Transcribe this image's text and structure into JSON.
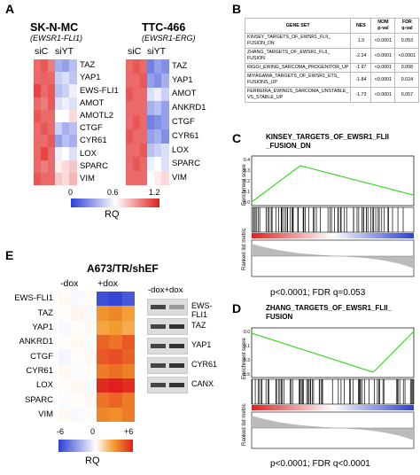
{
  "panels": {
    "A": {
      "letter": "A",
      "cells": [
        {
          "title": "SK-N-MC",
          "subtitle": "(EWSR1-FLI1)",
          "cols": [
            "siC",
            "siYT"
          ],
          "genes": [
            "TAZ",
            "YAP1",
            "EWS-FLI1",
            "AMOT",
            "AMOTL2",
            "CTGF",
            "CYR61",
            "LOX",
            "SPARC",
            "VIM"
          ]
        },
        {
          "title": "TTC-466",
          "subtitle": "(EWSR1-ERG)",
          "cols": [
            "siC",
            "siYT"
          ],
          "genes": [
            "TAZ",
            "YAP1",
            "AMOT",
            "ANKRD1",
            "CTGF",
            "CYR61",
            "LOX",
            "SPARC",
            "VIM"
          ]
        }
      ],
      "scale": {
        "ticks": [
          "0",
          "0.6",
          "1.2"
        ],
        "label": "RQ"
      }
    },
    "B": {
      "letter": "B",
      "headers": [
        "GENE SET",
        "NES",
        "NOM\np-val",
        "FDR\nq-val"
      ],
      "rows": [
        [
          "KINSEY_TARGETS_OF_EWSR1_FLII_\nFUSION_DN",
          "1.9",
          "<0.0001",
          "0.053"
        ],
        [
          "ZHANG_TARGETS_OF_EWSR1_FLII_\nFUSION",
          "-2.24",
          "<0.0001",
          "<0.0001"
        ],
        [
          "RIGGI_EWING_SARCOMA_PROGENITOR_UP",
          "-1.97",
          "<0.0001",
          "0.008"
        ],
        [
          "MIYAGAWA_TARGETS_OF_EWSR1_ETS_\nFUSIONS_UP",
          "-1.84",
          "<0.0001",
          "0.024"
        ],
        [
          "FERREIRA_EWINGS_SARCOMA_UNSTABLE_\nVS_STABLE_UP",
          "-1.73",
          "<0.0001",
          "0.057"
        ]
      ]
    },
    "C": {
      "letter": "C",
      "title": "KINSEY_TARGETS_OF_EWSR1_FLII\n_FUSION_DN",
      "ylabel_top": "Enrichment score",
      "ylabel_bottom": "Ranked list metric",
      "yticks": [
        "0.4",
        "0.3",
        "0.2",
        "0.1",
        "0.0"
      ],
      "stat": "p<0.0001; FDR q=0.053"
    },
    "D": {
      "letter": "D",
      "title": "ZHANG_TARGETS_OF_EWSR1_FLII_\nFUSION",
      "ylabel_top": "Enrichment score",
      "ylabel_bottom": "Ranked list metric",
      "yticks": [
        "0.0",
        "-0.1",
        "-0.3",
        "-0.5"
      ],
      "stat": "p<0.0001; FDR q<0.0001"
    },
    "E": {
      "letter": "E",
      "title": "A673/TR/shEF",
      "cols": [
        "-dox",
        "+dox"
      ],
      "genes": [
        "EWS-FLI1",
        "TAZ",
        "YAP1",
        "ANKRD1",
        "CTGF",
        "CYR61",
        "LOX",
        "SPARC",
        "VIM"
      ],
      "scale": {
        "ticks": [
          "-6",
          "0",
          "+6"
        ],
        "label": "RQ"
      },
      "blot_header": "-dox+dox",
      "blots": [
        "EWS-FLI1",
        "TAZ",
        "YAP1",
        "CYR61",
        "CANX"
      ]
    }
  },
  "colors": {
    "blue": "#2b3fd6",
    "red": "#e0201f",
    "orange": "#f29a2a",
    "gsea_line": "#3fd62b"
  },
  "heatmap_values": {
    "A1": [
      [
        [
          1.0,
          1.05,
          0.95
        ],
        [
          0.35,
          0.3,
          0.4
        ]
      ],
      [
        [
          1.0,
          1.02,
          1.0
        ],
        [
          0.45,
          0.5,
          0.42
        ]
      ],
      [
        [
          1.1,
          1.0,
          1.05
        ],
        [
          0.4,
          0.45,
          0.55
        ]
      ],
      [
        [
          1.0,
          0.95,
          1.05
        ],
        [
          0.5,
          0.55,
          0.5
        ]
      ],
      [
        [
          1.05,
          1.0,
          1.0
        ],
        [
          0.6,
          0.6,
          0.7
        ]
      ],
      [
        [
          1.0,
          1.05,
          1.0
        ],
        [
          0.45,
          0.35,
          0.4
        ]
      ],
      [
        [
          1.0,
          1.0,
          1.05
        ],
        [
          0.3,
          0.4,
          0.35
        ]
      ],
      [
        [
          1.0,
          1.1,
          1.0
        ],
        [
          0.55,
          0.6,
          0.5
        ]
      ],
      [
        [
          1.0,
          0.95,
          1.0
        ],
        [
          0.65,
          0.7,
          0.75
        ]
      ],
      [
        [
          1.05,
          1.0,
          1.0
        ],
        [
          0.75,
          0.7,
          0.8
        ]
      ]
    ],
    "A2": [
      [
        [
          1.0,
          1.05,
          1.0
        ],
        [
          0.2,
          0.3,
          0.25
        ]
      ],
      [
        [
          1.0,
          1.0,
          1.05
        ],
        [
          0.3,
          0.25,
          0.35
        ]
      ],
      [
        [
          1.05,
          1.0,
          1.0
        ],
        [
          0.5,
          0.55,
          0.45
        ]
      ],
      [
        [
          1.0,
          1.0,
          1.0
        ],
        [
          0.35,
          0.4,
          0.3
        ]
      ],
      [
        [
          1.0,
          1.05,
          1.0
        ],
        [
          0.2,
          0.25,
          0.3
        ]
      ],
      [
        [
          1.05,
          1.0,
          1.0
        ],
        [
          0.3,
          0.35,
          0.25
        ]
      ],
      [
        [
          1.0,
          1.0,
          1.05
        ],
        [
          0.4,
          0.45,
          0.5
        ]
      ],
      [
        [
          1.0,
          1.05,
          1.0
        ],
        [
          0.55,
          0.6,
          0.5
        ]
      ],
      [
        [
          1.0,
          1.0,
          1.0
        ],
        [
          0.6,
          0.65,
          0.7
        ]
      ]
    ],
    "E": [
      [
        [
          0.2,
          -0.2,
          0.1
        ],
        [
          -5.5,
          -5.8,
          -5.2
        ]
      ],
      [
        [
          0.1,
          0.3,
          -0.2
        ],
        [
          3.5,
          3.8,
          3.2
        ]
      ],
      [
        [
          -0.2,
          0.1,
          0.2
        ],
        [
          3.0,
          3.3,
          2.8
        ]
      ],
      [
        [
          0.1,
          0.2,
          -0.1
        ],
        [
          4.5,
          4.2,
          4.8
        ]
      ],
      [
        [
          -0.3,
          0.1,
          0.2
        ],
        [
          4.8,
          5.0,
          4.6
        ]
      ],
      [
        [
          0.2,
          -0.1,
          0.1
        ],
        [
          4.0,
          4.3,
          3.9
        ]
      ],
      [
        [
          0.1,
          0.2,
          -0.2
        ],
        [
          5.8,
          6.0,
          5.7
        ]
      ],
      [
        [
          -0.1,
          0.1,
          0.2
        ],
        [
          4.2,
          4.5,
          4.0
        ]
      ],
      [
        [
          0.2,
          -0.2,
          0.1
        ],
        [
          3.8,
          3.6,
          4.0
        ]
      ]
    ]
  }
}
